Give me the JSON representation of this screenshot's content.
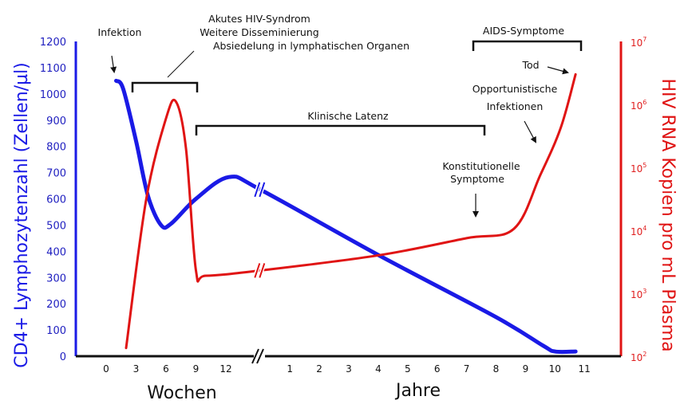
{
  "chart_data": {
    "type": "line",
    "left_axis": {
      "label": "CD4+ Lymphozytenzahl (Zellen/µl)",
      "range": [
        0,
        1200
      ],
      "ticks": [
        0,
        100,
        200,
        300,
        400,
        500,
        600,
        700,
        800,
        900,
        1000,
        1100,
        1200
      ],
      "color": "#1a1ae6"
    },
    "right_axis": {
      "label": "HIV RNA Kopien pro mL Plasma",
      "scale": "log",
      "range": [
        100,
        10000000
      ],
      "ticks": [
        "10^2",
        "10^3",
        "10^4",
        "10^5",
        "10^6",
        "10^7"
      ],
      "tick_bases": [
        "10",
        "10",
        "10",
        "10",
        "10",
        "10"
      ],
      "tick_exps": [
        "2",
        "3",
        "4",
        "5",
        "6",
        "7"
      ],
      "color": "#e01414"
    },
    "x_axis": {
      "weeks": {
        "label": "Wochen",
        "ticks": [
          "0",
          "3",
          "6",
          "9",
          "12"
        ]
      },
      "years": {
        "label": "Jahre",
        "ticks": [
          "1",
          "2",
          "3",
          "4",
          "5",
          "6",
          "7",
          "8",
          "9",
          "10",
          "11"
        ]
      },
      "axis_break": true
    },
    "series": [
      {
        "axis": "left",
        "color": "#1a1ae6",
        "points": [
          {
            "unit": "weeks",
            "x": 1,
            "y": 1050
          },
          {
            "unit": "weeks",
            "x": 1.7,
            "y": 1020
          },
          {
            "unit": "weeks",
            "x": 3,
            "y": 820
          },
          {
            "unit": "weeks",
            "x": 4.2,
            "y": 610
          },
          {
            "unit": "weeks",
            "x": 5.5,
            "y": 500
          },
          {
            "unit": "weeks",
            "x": 6.5,
            "y": 505
          },
          {
            "unit": "weeks",
            "x": 9,
            "y": 600
          },
          {
            "unit": "weeks",
            "x": 12.3,
            "y": 683
          },
          {
            "unit": "years",
            "x": 0,
            "y": 635
          },
          {
            "unit": "years",
            "x": 4,
            "y": 386
          },
          {
            "unit": "years",
            "x": 8,
            "y": 149
          },
          {
            "unit": "years",
            "x": 9.6,
            "y": 40
          },
          {
            "unit": "years",
            "x": 10,
            "y": 18
          },
          {
            "unit": "years",
            "x": 10.7,
            "y": 18
          }
        ]
      },
      {
        "axis": "right",
        "color": "#e01414",
        "points": [
          {
            "unit": "weeks",
            "x": 2,
            "y": 135
          },
          {
            "unit": "weeks",
            "x": 4,
            "y": 30000
          },
          {
            "unit": "weeks",
            "x": 6,
            "y": 600000
          },
          {
            "unit": "weeks",
            "x": 7,
            "y": 1100000
          },
          {
            "unit": "weeks",
            "x": 8,
            "y": 200000
          },
          {
            "unit": "weeks",
            "x": 9,
            "y": 2300
          },
          {
            "unit": "weeks",
            "x": 10,
            "y": 1900
          },
          {
            "unit": "years",
            "x": 0,
            "y": 2300
          },
          {
            "unit": "years",
            "x": 4,
            "y": 4000
          },
          {
            "unit": "years",
            "x": 7,
            "y": 7500
          },
          {
            "unit": "years",
            "x": 8.6,
            "y": 10500
          },
          {
            "unit": "years",
            "x": 9.5,
            "y": 75000
          },
          {
            "unit": "years",
            "x": 10.2,
            "y": 430000
          },
          {
            "unit": "years",
            "x": 10.7,
            "y": 3000000
          }
        ]
      }
    ],
    "annotations": {
      "infektion": "Infektion",
      "akut": [
        "Akutes HIV-Syndrom",
        "Weitere Disseminierung",
        "Absiedelung in lymphatischen Organen"
      ],
      "latenz": "Klinische Latenz",
      "aids": "AIDS-Symptome",
      "tod": "Tod",
      "opportunistisch": [
        "Opportunistische",
        "Infektionen"
      ],
      "konstitutionell": [
        "Konstitutionelle",
        "Symptome"
      ]
    }
  }
}
